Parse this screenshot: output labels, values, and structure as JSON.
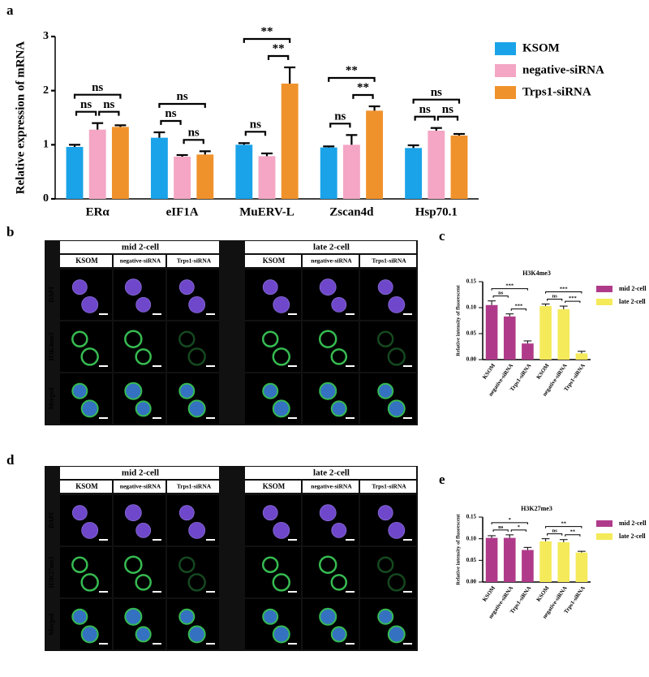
{
  "figure": {
    "labels": [
      "a",
      "b",
      "c",
      "d",
      "e"
    ],
    "image_panels": [
      {
        "groups": [
          "mid 2-cell",
          "late 2-cell"
        ],
        "columns": [
          "KSOM",
          "negative-siRNA",
          "Trps1-siRNA"
        ],
        "rows": [
          "DAPI",
          "H3K4me3",
          "Merged"
        ]
      },
      {
        "groups": [
          "mid 2-cell",
          "late 2-cell"
        ],
        "columns": [
          "KSOM",
          "negative-siRNA",
          "Trps1-siRNA"
        ],
        "rows": [
          "DAPI",
          "H3K27me3",
          "Merged"
        ]
      }
    ]
  },
  "chart_data": [
    {
      "type": "bar",
      "ylabel": "Relative expression of mRNA",
      "categories": [
        "ERα",
        "eIF1A",
        "MuERV-L",
        "Zscan4d",
        "Hsp70.1"
      ],
      "series": [
        {
          "name": "KSOM",
          "color": "#1aa3e8",
          "values": [
            0.96,
            1.13,
            1.0,
            0.95,
            0.94
          ],
          "errors": [
            0.04,
            0.1,
            0.03,
            0.02,
            0.05
          ]
        },
        {
          "name": "negative-siRNA",
          "color": "#f4a6c4",
          "values": [
            1.28,
            0.78,
            0.79,
            1.0,
            1.26
          ],
          "errors": [
            0.12,
            0.03,
            0.05,
            0.18,
            0.05
          ]
        },
        {
          "name": "Trps1-siRNA",
          "color": "#f0922b",
          "values": [
            1.33,
            0.82,
            2.13,
            1.63,
            1.17
          ],
          "errors": [
            0.03,
            0.06,
            0.3,
            0.08,
            0.03
          ]
        }
      ],
      "significance": [
        [
          "ns",
          "ns",
          "ns"
        ],
        [
          "ns",
          "ns",
          "ns"
        ],
        [
          "ns",
          "**",
          "**"
        ],
        [
          "ns",
          "**",
          "**"
        ],
        [
          "ns",
          "ns",
          "ns"
        ]
      ],
      "ylim": [
        0,
        3
      ],
      "yticks": [
        0,
        1,
        2,
        3
      ]
    },
    {
      "type": "bar",
      "title": "H3K4me3",
      "ylabel": "Relative intensity of fluorescent",
      "categories": [
        "KSOM",
        "negative-siRNA",
        "Trps1-siRNA"
      ],
      "series": [
        {
          "name": "mid 2-cell",
          "color": "#b03a8a",
          "values": [
            0.105,
            0.083,
            0.031
          ],
          "errors": [
            0.008,
            0.005,
            0.005
          ]
        },
        {
          "name": "late 2-cell",
          "color": "#f5ea5a",
          "values": [
            0.103,
            0.097,
            0.012
          ],
          "errors": [
            0.004,
            0.006,
            0.004
          ]
        }
      ],
      "significance": [
        [
          "ns",
          "***",
          "***"
        ],
        [
          "ns",
          "***",
          "***"
        ]
      ],
      "ylim": [
        0,
        0.15
      ],
      "yticks": [
        {
          "value": 0,
          "label": "0.00"
        },
        {
          "value": 0.05,
          "label": "0.05"
        },
        {
          "value": 0.1,
          "label": "0.10"
        },
        {
          "value": 0.15,
          "label": "0.15"
        }
      ]
    },
    {
      "type": "bar",
      "title": "H3K27me3",
      "ylabel": "Relative intensity of fluorescent",
      "categories": [
        "KSOM",
        "negative-siRNA",
        "Trps1-siRNA"
      ],
      "series": [
        {
          "name": "mid 2-cell",
          "color": "#b03a8a",
          "values": [
            0.102,
            0.102,
            0.074
          ],
          "errors": [
            0.005,
            0.007,
            0.006
          ]
        },
        {
          "name": "late 2-cell",
          "color": "#f5ea5a",
          "values": [
            0.094,
            0.092,
            0.068
          ],
          "errors": [
            0.006,
            0.006,
            0.003
          ]
        }
      ],
      "significance": [
        [
          "ns",
          "*",
          "*"
        ],
        [
          "ns",
          "**",
          "**"
        ]
      ],
      "ylim": [
        0,
        0.15
      ],
      "yticks": [
        {
          "value": 0,
          "label": "0.00"
        },
        {
          "value": 0.05,
          "label": "0.05"
        },
        {
          "value": 0.1,
          "label": "0.10"
        },
        {
          "value": 0.15,
          "label": "0.15"
        }
      ]
    }
  ]
}
